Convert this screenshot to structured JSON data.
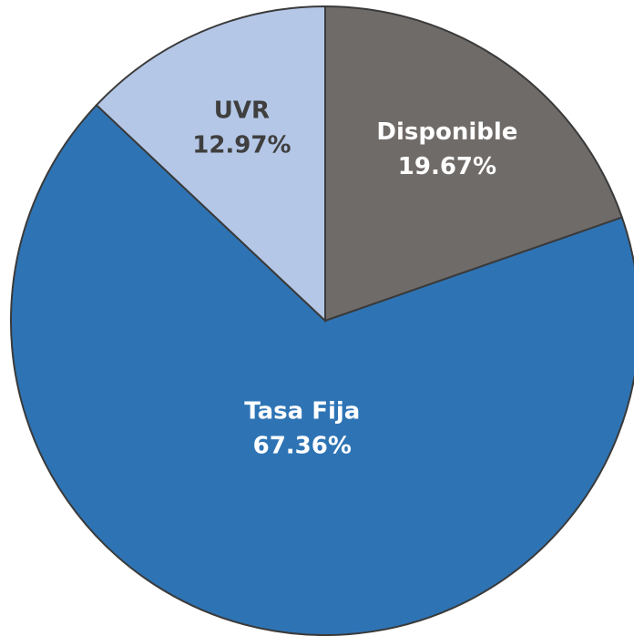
{
  "chart_data": {
    "type": "pie",
    "categories": [
      "Disponible",
      "Tasa Fija",
      "UVR"
    ],
    "values": [
      19.67,
      67.36,
      12.97
    ],
    "value_labels": [
      "19.67%",
      "67.36%",
      "12.97%"
    ],
    "colors": [
      "#6f6b69",
      "#2e74b5",
      "#b4c7e7"
    ]
  }
}
